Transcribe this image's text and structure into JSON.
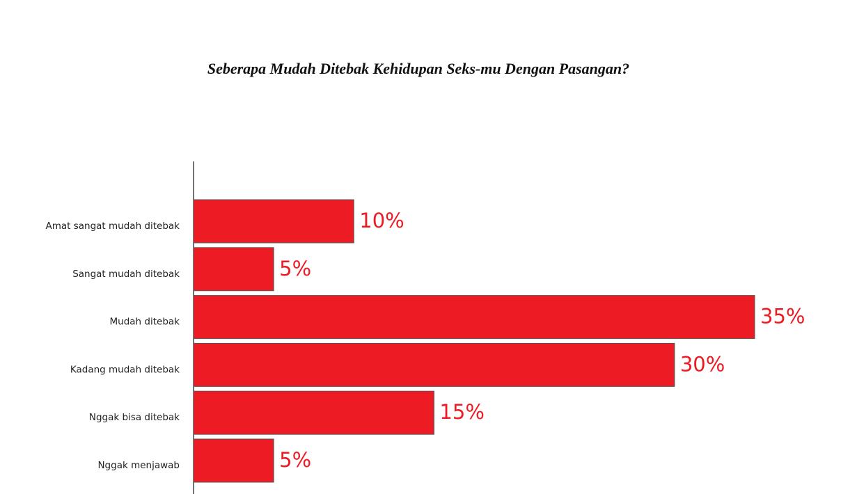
{
  "chart_data": {
    "type": "hbar",
    "title": "Seberapa Mudah Ditebak Kehidupan Seks-mu Dengan Pasangan?",
    "categories": [
      "Amat sangat mudah ditebak",
      "Sangat mudah ditebak",
      "Mudah ditebak",
      "Kadang mudah ditebak",
      "Nggak bisa ditebak",
      "Nggak menjawab"
    ],
    "values": [
      10,
      5,
      35,
      30,
      15,
      5
    ],
    "value_labels": [
      "10%",
      "5%",
      "35%",
      "30%",
      "15%",
      "5%"
    ],
    "color": "#ed1c24"
  }
}
